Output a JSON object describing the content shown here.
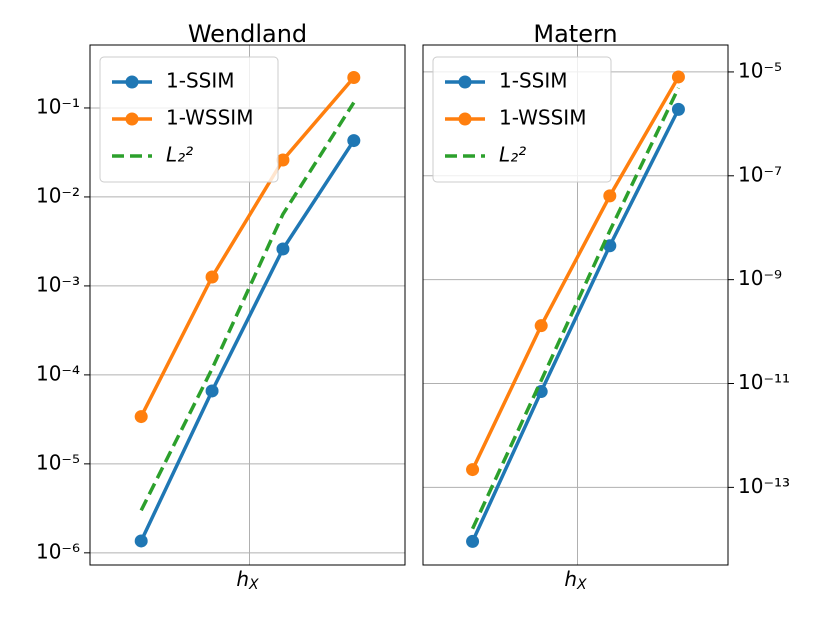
{
  "chart_data": [
    {
      "type": "line",
      "title": "Wendland",
      "xlabel": {
        "text": "h",
        "subscript": "X"
      },
      "categories": [
        null,
        null,
        null,
        null
      ],
      "log_y": true,
      "grid": true,
      "yaxis_side": "left",
      "legend": "upper left",
      "ylim": [
        7.3e-07,
        0.51
      ],
      "yticks": [
        {
          "value": 1e-06,
          "label": "10⁻⁶"
        },
        {
          "value": 1e-05,
          "label": "10⁻⁵"
        },
        {
          "value": 0.0001,
          "label": "10⁻⁴"
        },
        {
          "value": 0.001,
          "label": "10⁻³"
        },
        {
          "value": 0.01,
          "label": "10⁻²"
        },
        {
          "value": 0.1,
          "label": "10⁻¹"
        }
      ],
      "series": [
        {
          "name": "1-SSIM",
          "color": "#1f77b4",
          "style": "solid",
          "marker": true,
          "values": [
            1.36e-06,
            6.6e-05,
            0.0026,
            0.043
          ]
        },
        {
          "name": "1-WSSIM",
          "color": "#ff7f0e",
          "style": "solid",
          "marker": true,
          "values": [
            3.4e-05,
            0.00126,
            0.026,
            0.22
          ]
        },
        {
          "name": "L₂²",
          "color": "#2ca02c",
          "style": "dashed",
          "marker": false,
          "values": [
            3e-06,
            0.000117,
            0.0064,
            0.115
          ]
        }
      ]
    },
    {
      "type": "line",
      "title": "Matern",
      "xlabel": {
        "text": "h",
        "subscript": "X"
      },
      "categories": [
        null,
        null,
        null,
        null
      ],
      "log_y": true,
      "grid": true,
      "yaxis_side": "right",
      "legend": "upper left",
      "ylim": [
        3.2e-15,
        3.3e-05
      ],
      "yticks": [
        {
          "value": 1e-13,
          "label": "10⁻¹³"
        },
        {
          "value": 1e-11,
          "label": "10⁻¹¹"
        },
        {
          "value": 1e-09,
          "label": "10⁻⁹"
        },
        {
          "value": 1e-07,
          "label": "10⁻⁷"
        },
        {
          "value": 1e-05,
          "label": "10⁻⁵"
        }
      ],
      "series": [
        {
          "name": "1-SSIM",
          "color": "#1f77b4",
          "style": "solid",
          "marker": true,
          "values": [
            9.1e-15,
            7e-12,
            4.5e-09,
            1.9e-06
          ]
        },
        {
          "name": "1-WSSIM",
          "color": "#ff7f0e",
          "style": "solid",
          "marker": true,
          "values": [
            2.2e-13,
            1.3e-10,
            4.1e-08,
            8e-06
          ]
        },
        {
          "name": "L₂²",
          "color": "#2ca02c",
          "style": "dashed",
          "marker": false,
          "values": [
            1.6e-14,
            1.14e-11,
            8.7e-09,
            4.9e-06
          ]
        }
      ]
    }
  ]
}
